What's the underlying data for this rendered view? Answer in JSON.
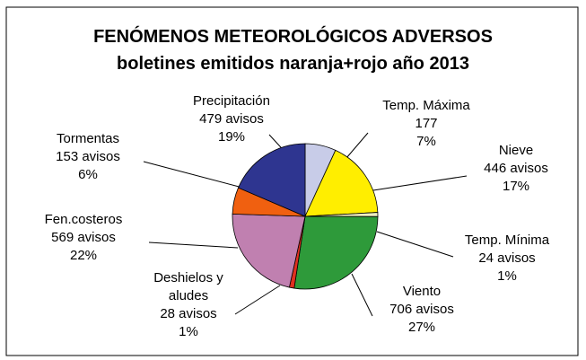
{
  "chart_data": {
    "type": "pie",
    "title": "FENÓMENOS METEOROLÓGICOS ADVERSOS",
    "subtitle": "boletines emitidos naranja+rojo año 2013",
    "categories": [
      "Temp. Máxima",
      "Nieve",
      "Temp. Mínima",
      "Viento",
      "Deshielos y aludes",
      "Fen.costeros",
      "Tormentas",
      "Precipitación"
    ],
    "values": [
      177,
      446,
      24,
      706,
      28,
      569,
      153,
      479
    ],
    "value_labels": [
      "177",
      "446 avisos",
      "24 avisos",
      "706 avisos",
      "28 avisos",
      "569 avisos",
      "153 avisos",
      "479 avisos"
    ],
    "percent_labels": [
      "7%",
      "17%",
      "1%",
      "27%",
      "1%",
      "22%",
      "6%",
      "19%"
    ],
    "colors": [
      "#c8cce8",
      "#ffee00",
      "#eeeec0",
      "#2e9a3a",
      "#e03020",
      "#c080b0",
      "#f06010",
      "#2e3590"
    ]
  }
}
